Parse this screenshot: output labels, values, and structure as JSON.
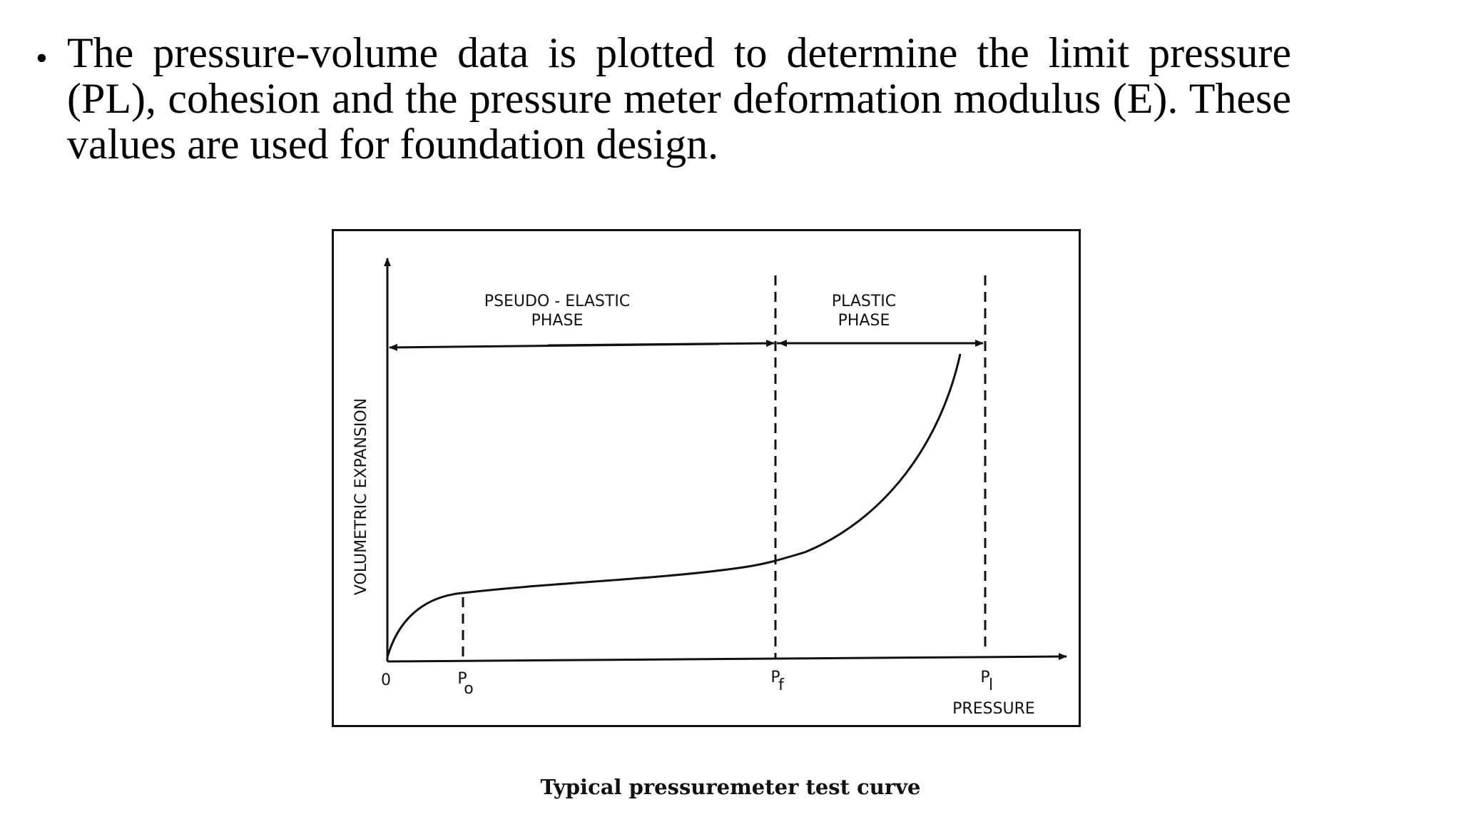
{
  "bullet": {
    "marker": "•",
    "text": "The pressure-volume data is plotted to determine the limit pressure (PL), cohesion and the pressure meter deformation modulus (E). These values are used for foundation design."
  },
  "diagram": {
    "y_axis_label": "VOLUMETRIC EXPANSION",
    "x_axis_label": "PRESSURE",
    "origin_label": "0",
    "marker_p0": {
      "main": "P",
      "sub": "o"
    },
    "marker_pf": {
      "main": "P",
      "sub": "f"
    },
    "marker_pl": {
      "main": "P",
      "sub": "l"
    },
    "phase_elastic_line1": "PSEUDO - ELASTIC",
    "phase_elastic_line2": "PHASE",
    "phase_plastic_line1": "PLASTIC",
    "phase_plastic_line2": "PHASE"
  },
  "caption": "Typical pressuremeter test curve"
}
